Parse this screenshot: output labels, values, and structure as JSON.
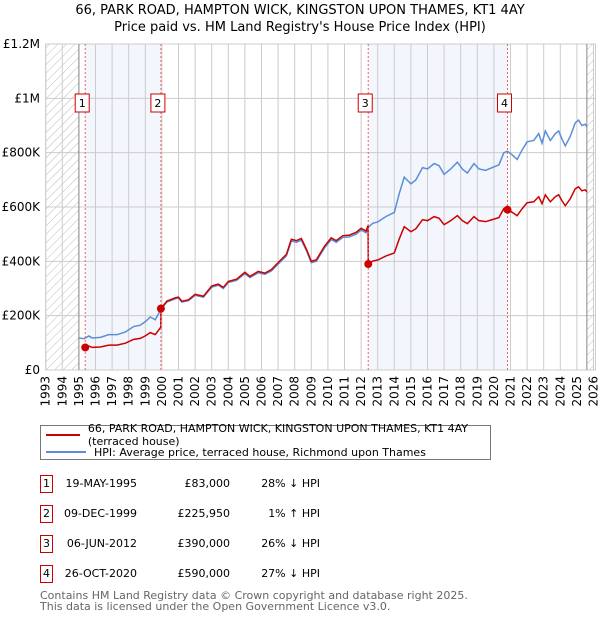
{
  "title_line1": "66, PARK ROAD, HAMPTON WICK, KINGSTON UPON THAMES, KT1 4AY",
  "title_line2": "Price paid vs. HM Land Registry's House Price Index (HPI)",
  "chart_data": {
    "type": "line",
    "xlim": [
      1993,
      2026
    ],
    "ylim": [
      0,
      1200000
    ],
    "y_ticks": [
      0,
      200000,
      400000,
      600000,
      800000,
      1000000,
      1200000
    ],
    "y_tick_labels": [
      "£0",
      "£200K",
      "£400K",
      "£600K",
      "£800K",
      "£1M",
      "£1.2M"
    ],
    "x_ticks": [
      1993,
      1994,
      1995,
      1996,
      1997,
      1998,
      1999,
      2000,
      2001,
      2002,
      2003,
      2004,
      2005,
      2006,
      2007,
      2008,
      2009,
      2010,
      2011,
      2012,
      2013,
      2014,
      2015,
      2016,
      2017,
      2018,
      2019,
      2020,
      2021,
      2022,
      2023,
      2024,
      2025,
      2026
    ],
    "grid": true,
    "hatched_ranges": [
      [
        1993,
        1995
      ],
      [
        2025.6,
        2026
      ]
    ],
    "shaded_ranges": [
      [
        1995.38,
        1999.94
      ],
      [
        2012.43,
        2020.82
      ]
    ],
    "series": [
      {
        "name": "66, PARK ROAD, HAMPTON WICK, KINGSTON UPON THAMES, KT1 4AY (terraced house)",
        "color": "#cc0000"
      },
      {
        "name": "HPI: Average price, terraced house, Richmond upon Thames",
        "color": "#5b8ed6",
        "points": [
          [
            1995,
            118000
          ],
          [
            1995.3,
            115000
          ],
          [
            1995.6,
            125000
          ],
          [
            1995.8,
            118000
          ],
          [
            1996.3,
            120000
          ],
          [
            1996.8,
            130000
          ],
          [
            1997.3,
            130000
          ],
          [
            1997.8,
            140000
          ],
          [
            1998.3,
            160000
          ],
          [
            1998.7,
            165000
          ],
          [
            1999.0,
            178000
          ],
          [
            1999.3,
            195000
          ],
          [
            1999.6,
            185000
          ],
          [
            1999.94,
            223000
          ],
          [
            2000.3,
            250000
          ],
          [
            2000.8,
            262000
          ],
          [
            2001.0,
            265000
          ],
          [
            2001.2,
            250000
          ],
          [
            2001.6,
            255000
          ],
          [
            2002.0,
            275000
          ],
          [
            2002.5,
            268000
          ],
          [
            2003.0,
            305000
          ],
          [
            2003.4,
            312000
          ],
          [
            2003.7,
            300000
          ],
          [
            2004.0,
            322000
          ],
          [
            2004.5,
            330000
          ],
          [
            2005.0,
            355000
          ],
          [
            2005.3,
            340000
          ],
          [
            2005.8,
            358000
          ],
          [
            2006.2,
            352000
          ],
          [
            2006.6,
            365000
          ],
          [
            2007.0,
            390000
          ],
          [
            2007.5,
            420000
          ],
          [
            2007.8,
            475000
          ],
          [
            2008.1,
            470000
          ],
          [
            2008.4,
            478000
          ],
          [
            2008.7,
            440000
          ],
          [
            2009.0,
            395000
          ],
          [
            2009.3,
            400000
          ],
          [
            2009.8,
            450000
          ],
          [
            2010.2,
            480000
          ],
          [
            2010.5,
            470000
          ],
          [
            2010.9,
            488000
          ],
          [
            2011.3,
            490000
          ],
          [
            2011.7,
            500000
          ],
          [
            2012.0,
            515000
          ],
          [
            2012.3,
            505000
          ],
          [
            2012.43,
            525000
          ],
          [
            2012.7,
            540000
          ],
          [
            2013.0,
            545000
          ],
          [
            2013.5,
            565000
          ],
          [
            2014.0,
            580000
          ],
          [
            2014.3,
            650000
          ],
          [
            2014.6,
            710000
          ],
          [
            2015.0,
            685000
          ],
          [
            2015.3,
            700000
          ],
          [
            2015.7,
            745000
          ],
          [
            2016.0,
            740000
          ],
          [
            2016.4,
            760000
          ],
          [
            2016.7,
            752000
          ],
          [
            2017.0,
            720000
          ],
          [
            2017.4,
            740000
          ],
          [
            2017.8,
            765000
          ],
          [
            2018.1,
            740000
          ],
          [
            2018.4,
            725000
          ],
          [
            2018.8,
            760000
          ],
          [
            2019.1,
            740000
          ],
          [
            2019.5,
            735000
          ],
          [
            2019.9,
            745000
          ],
          [
            2020.3,
            755000
          ],
          [
            2020.6,
            800000
          ],
          [
            2020.82,
            805000
          ],
          [
            2021.1,
            792000
          ],
          [
            2021.4,
            775000
          ],
          [
            2021.7,
            810000
          ],
          [
            2022.0,
            840000
          ],
          [
            2022.4,
            845000
          ],
          [
            2022.7,
            870000
          ],
          [
            2022.9,
            835000
          ],
          [
            2023.1,
            880000
          ],
          [
            2023.4,
            845000
          ],
          [
            2023.7,
            870000
          ],
          [
            2023.9,
            880000
          ],
          [
            2024.1,
            850000
          ],
          [
            2024.3,
            825000
          ],
          [
            2024.6,
            860000
          ],
          [
            2024.9,
            910000
          ],
          [
            2025.1,
            920000
          ],
          [
            2025.3,
            900000
          ],
          [
            2025.5,
            905000
          ],
          [
            2025.6,
            895000
          ]
        ]
      }
    ],
    "sales": [
      {
        "label": "1",
        "x": 1995.38,
        "value": 83000
      },
      {
        "label": "2",
        "x": 1999.94,
        "value": 225950
      },
      {
        "label": "3",
        "x": 2012.43,
        "value": 390000
      },
      {
        "label": "4",
        "x": 2020.82,
        "value": 590000
      }
    ]
  },
  "legend": {
    "property": "66, PARK ROAD, HAMPTON WICK, KINGSTON UPON THAMES, KT1 4AY (terraced house)",
    "hpi": "HPI: Average price, terraced house, Richmond upon Thames"
  },
  "transactions": [
    {
      "num": "1",
      "date": "19-MAY-1995",
      "price": "£83,000",
      "hpi": "28% ↓ HPI"
    },
    {
      "num": "2",
      "date": "09-DEC-1999",
      "price": "£225,950",
      "hpi": "1% ↑ HPI"
    },
    {
      "num": "3",
      "date": "06-JUN-2012",
      "price": "£390,000",
      "hpi": "26% ↓ HPI"
    },
    {
      "num": "4",
      "date": "26-OCT-2020",
      "price": "£590,000",
      "hpi": "27% ↓ HPI"
    }
  ],
  "footer": {
    "line1": "Contains HM Land Registry data © Crown copyright and database right 2025.",
    "line2": "This data is licensed under the Open Government Licence v3.0."
  }
}
